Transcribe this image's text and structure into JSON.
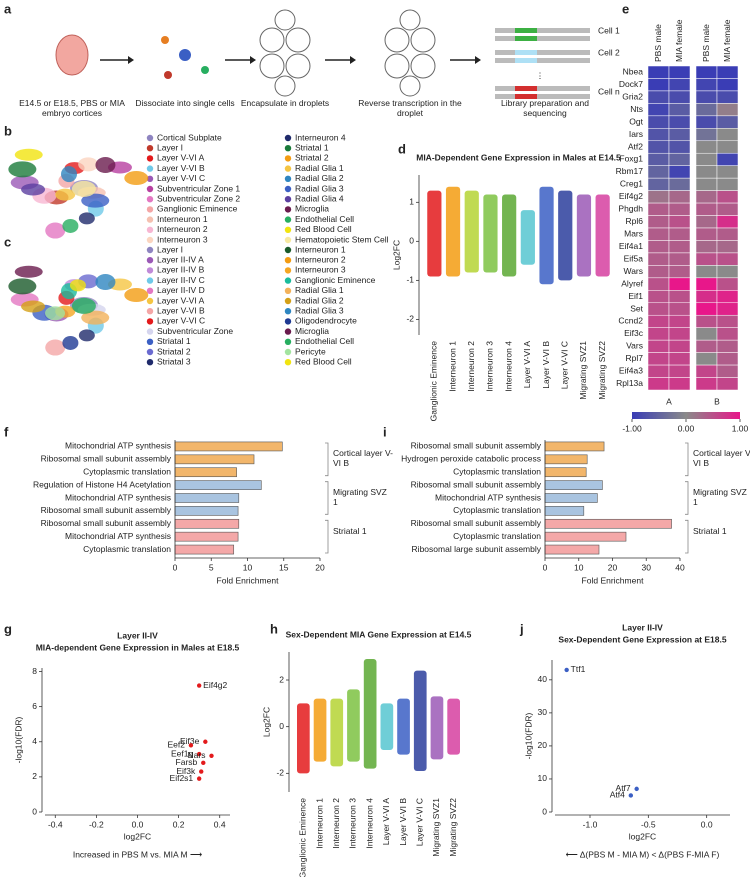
{
  "panel_labels": [
    "a",
    "b",
    "c",
    "d",
    "e",
    "f",
    "g",
    "h",
    "i",
    "j"
  ],
  "workflow": {
    "steps": [
      "E14.5 or E18.5, PBS or MIA embryo cortices",
      "Dissociate into single cells",
      "Encapsulate in droplets",
      "Reverse transcription in the droplet",
      "Library preparation and sequencing"
    ],
    "cells": [
      "Cell 1",
      "Cell 2",
      "Cell n"
    ]
  },
  "legend_b": {
    "columns": [
      [
        {
          "name": "Cortical Subplate",
          "color": "#8e84c0"
        },
        {
          "name": "Layer I",
          "color": "#c0392b"
        },
        {
          "name": "Layer V-VI A",
          "color": "#e31a1c"
        },
        {
          "name": "Layer V-VI B",
          "color": "#6fc9e8"
        },
        {
          "name": "Layer V-VI C",
          "color": "#9b59b6"
        },
        {
          "name": "Subventricular Zone 1",
          "color": "#b83fa0"
        },
        {
          "name": "Subventricular Zone 2",
          "color": "#e377c2"
        },
        {
          "name": "Ganglionic Eminence",
          "color": "#f4a6a6"
        },
        {
          "name": "Interneuron 1",
          "color": "#f5c0b0"
        },
        {
          "name": "Interneuron 2",
          "color": "#f7b6d2"
        },
        {
          "name": "Interneuron 3",
          "color": "#fbd5c0"
        }
      ],
      [
        {
          "name": "Interneuron 4",
          "color": "#1f2a6b"
        },
        {
          "name": "Striatal 1",
          "color": "#1a7a3a"
        },
        {
          "name": "Striatal 2",
          "color": "#f39c12"
        },
        {
          "name": "Radial Glia 1",
          "color": "#f5c542"
        },
        {
          "name": "Radial Glia 2",
          "color": "#2e86c1"
        },
        {
          "name": "Radial Glia 3",
          "color": "#3b5fc4"
        },
        {
          "name": "Radial Glia 4",
          "color": "#5b3fa0"
        },
        {
          "name": "Microglia",
          "color": "#6a1b4d"
        },
        {
          "name": "Endothelial Cell",
          "color": "#27ae60"
        },
        {
          "name": "Red Blood Cell",
          "color": "#f1e40f"
        },
        {
          "name": "Hematopoietic Stem Cell",
          "color": "#f7e9a0"
        }
      ]
    ]
  },
  "legend_c": {
    "columns": [
      [
        {
          "name": "Layer I",
          "color": "#8e84c0"
        },
        {
          "name": "Layer II-IV A",
          "color": "#9b59b6"
        },
        {
          "name": "Layer II-IV B",
          "color": "#c08ad8"
        },
        {
          "name": "Layer II-IV C",
          "color": "#6fc9e8"
        },
        {
          "name": "Layer II-IV D",
          "color": "#e377c2"
        },
        {
          "name": "Layer V-VI A",
          "color": "#f5c542"
        },
        {
          "name": "Layer V-VI B",
          "color": "#f4a6a6"
        },
        {
          "name": "Layer V-VI C",
          "color": "#e31a1c"
        },
        {
          "name": "Subventricular Zone",
          "color": "#d5d5ee"
        },
        {
          "name": "Striatal 1",
          "color": "#3b5fc4"
        },
        {
          "name": "Striatal 2",
          "color": "#6a6ad0"
        },
        {
          "name": "Striatal 3",
          "color": "#1f2a6b"
        }
      ],
      [
        {
          "name": "Interneuron 1",
          "color": "#1a5a2a"
        },
        {
          "name": "Interneuron 2",
          "color": "#f39c12"
        },
        {
          "name": "Interneuron 3",
          "color": "#f5a623"
        },
        {
          "name": "Ganglionic Eminence",
          "color": "#1abc9c"
        },
        {
          "name": "Radial Glia 1",
          "color": "#f3b25a"
        },
        {
          "name": "Radial Glia 2",
          "color": "#d4a017"
        },
        {
          "name": "Radial Glia 3",
          "color": "#2e86c1"
        },
        {
          "name": "Oligodendrocyte",
          "color": "#1f3a93"
        },
        {
          "name": "Microglia",
          "color": "#6a1b4d"
        },
        {
          "name": "Endothelial Cell",
          "color": "#27ae60"
        },
        {
          "name": "Pericyte",
          "color": "#a3e4a0"
        },
        {
          "name": "Red Blood Cell",
          "color": "#f1e40f"
        }
      ]
    ]
  },
  "chart_data": [
    {
      "type": "strip",
      "title": "MIA-Dependent Gene Expression in Males at E14.5",
      "ylabel": "Log2FC",
      "categories": [
        "Ganglionic Eminence",
        "Interneuron 1",
        "Interneuron 2",
        "Interneuron 3",
        "Interneuron 4",
        "Layer V-VI A",
        "Layer V-VI B",
        "Layer V-VI C",
        "Migrating SVZ1",
        "Migrating SVZ2"
      ],
      "colors": [
        "#e31a1c",
        "#f39c12",
        "#b5d334",
        "#7cc242",
        "#5aa832",
        "#56c5d0",
        "#3b5fc4",
        "#2c3e9c",
        "#9b59b6",
        "#d63fa0"
      ],
      "low": [
        -0.9,
        -0.9,
        -0.8,
        -0.8,
        -0.9,
        -0.6,
        -1.1,
        -1.0,
        -0.9,
        -0.9
      ],
      "high": [
        1.3,
        1.4,
        1.3,
        1.2,
        1.2,
        0.8,
        1.4,
        1.3,
        1.2,
        1.2
      ],
      "ylim": [
        -2.4,
        1.7
      ],
      "yticks": [
        -2,
        -1,
        0,
        1
      ]
    },
    {
      "type": "heatmap",
      "column_groups": [
        "A",
        "B"
      ],
      "columns": [
        "PBS male",
        "MIA female",
        "PBS male",
        "MIA female"
      ],
      "rows": [
        "Nbea",
        "Dock7",
        "Gria2",
        "Nts",
        "Ogt",
        "Iars",
        "Atf2",
        "Foxg1",
        "Rbm17",
        "Creg1",
        "Eif4g2",
        "Phgdh",
        "Rpl6",
        "Mars",
        "Eif4a1",
        "Eif5a",
        "Wars",
        "Alyref",
        "Eif1",
        "Set",
        "Ccnd2",
        "Eif3c",
        "Vars",
        "Rpl7",
        "Eif4a3",
        "Rpl13a"
      ],
      "values": [
        [
          -1,
          -1,
          -1,
          -1
        ],
        [
          -1,
          -0.9,
          -0.9,
          -1
        ],
        [
          -0.8,
          -0.8,
          -0.8,
          -0.8
        ],
        [
          -0.9,
          -0.6,
          -0.4,
          0.1
        ],
        [
          -0.8,
          -0.8,
          -0.8,
          -0.6
        ],
        [
          -0.7,
          -0.6,
          -0.3,
          0
        ],
        [
          -0.7,
          -0.7,
          0,
          0
        ],
        [
          -0.6,
          -0.5,
          0,
          -0.9
        ],
        [
          -0.5,
          -0.9,
          0,
          0
        ],
        [
          -0.5,
          -0.4,
          0,
          0
        ],
        [
          0.2,
          0.3,
          0.3,
          0.5
        ],
        [
          0.4,
          0.4,
          0.4,
          0.4
        ],
        [
          0.4,
          0.5,
          0.3,
          0.8
        ],
        [
          0.4,
          0.4,
          0.4,
          0.4
        ],
        [
          0.4,
          0.4,
          0.3,
          0.3
        ],
        [
          0.4,
          0.4,
          0.5,
          0.5
        ],
        [
          0.4,
          0.4,
          0,
          0
        ],
        [
          0.5,
          1,
          1,
          0.5
        ],
        [
          0.5,
          0.5,
          0.8,
          0.9
        ],
        [
          0.5,
          0.5,
          1,
          0.9
        ],
        [
          0.6,
          0.6,
          0.5,
          0.5
        ],
        [
          0.6,
          0.6,
          0,
          0.5
        ],
        [
          0.6,
          0.6,
          0.4,
          0.4
        ],
        [
          0.6,
          0.6,
          0,
          0.4
        ],
        [
          0.6,
          0.6,
          0.6,
          0.4
        ],
        [
          0.7,
          0.7,
          0.7,
          0.6
        ]
      ],
      "colorscale": {
        "colors": [
          "#3a3db5",
          "#8a8a8a",
          "#e8178a"
        ],
        "range": [
          -1,
          1
        ],
        "ticks": [
          {
            "value": -1,
            "label": "-1.00"
          },
          {
            "value": 0,
            "label": "0.00"
          },
          {
            "value": 1,
            "label": "1.00"
          }
        ]
      }
    },
    {
      "type": "barh",
      "xlabel": "Fold Enrichment",
      "xlim": [
        0,
        20
      ],
      "xticks": [
        0,
        5,
        10,
        15,
        20
      ],
      "groups": [
        {
          "label": "Cortical layer V-VI B",
          "color": "#f2b66b",
          "categories": [
            "Mitochondrial ATP synthesis",
            "Ribosomal small subunit assembly",
            "Cytoplasmic translation"
          ],
          "values": [
            14.8,
            10.9,
            8.5
          ]
        },
        {
          "label": "Migrating SVZ 1",
          "color": "#a9c4e0",
          "categories": [
            "Regulation of Histone H4 Acetylation",
            "Mitochondrial ATP synthesis",
            "Ribosomal small subunit assembly"
          ],
          "values": [
            11.9,
            8.8,
            8.7
          ]
        },
        {
          "label": "Striatal 1",
          "color": "#f4a8a8",
          "categories": [
            "Ribosomal small subunit assembly",
            "Mitochondrial ATP synthesis",
            "Cytoplasmic translation"
          ],
          "values": [
            8.8,
            8.7,
            8.1
          ]
        }
      ]
    },
    {
      "type": "barh",
      "xlabel": "Fold Enrichment",
      "xlim": [
        0,
        40
      ],
      "xticks": [
        0,
        10,
        20,
        30,
        40
      ],
      "groups": [
        {
          "label": "Cortical layer V-VI B",
          "color": "#f2b66b",
          "categories": [
            "Ribosomal small subunit assembly",
            "Hydrogen peroxide catabolic process",
            "Cytoplasmic translation"
          ],
          "values": [
            17.5,
            12.5,
            12.2
          ]
        },
        {
          "label": "Migrating SVZ 1",
          "color": "#a9c4e0",
          "categories": [
            "Ribosomal small subunit assembly",
            "Mitochondrial ATP synthesis",
            "Cytoplasmic translation"
          ],
          "values": [
            17,
            15.5,
            11.5
          ]
        },
        {
          "label": "Striatal 1",
          "color": "#f4a8a8",
          "categories": [
            "Ribosomal small subunit assembly",
            "Cytoplasmic translation",
            "Ribosomal large subunit assembly"
          ],
          "values": [
            37.5,
            24,
            16
          ]
        }
      ]
    },
    {
      "type": "volcano",
      "title": "Layer II-IV",
      "subtitle": "MIA-dependent Gene Expression in Males at E18.5",
      "xlabel": "log2FC",
      "ylabel": "-log10(FDR)",
      "caption": "Increased in PBS M vs. MIA M ⟶",
      "color": "#e31a1c",
      "xlim": [
        -0.45,
        0.45
      ],
      "ylim": [
        0,
        8.2
      ],
      "xticks": [
        -0.4,
        -0.2,
        {
          "value": 0,
          "label": "0.0"
        },
        0.2,
        0.4
      ],
      "yticks": [
        0,
        2,
        4,
        6,
        8
      ],
      "points": [
        {
          "label": "Eif4g2",
          "x": 0.3,
          "y": 7.2
        },
        {
          "label": "Eif3e",
          "x": 0.33,
          "y": 4.0
        },
        {
          "label": "Eef2",
          "x": 0.26,
          "y": 3.8
        },
        {
          "label": "Eef1g",
          "x": 0.3,
          "y": 3.3
        },
        {
          "label": "Nars",
          "x": 0.36,
          "y": 3.2
        },
        {
          "label": "Farsb",
          "x": 0.32,
          "y": 2.8
        },
        {
          "label": "Eif3k",
          "x": 0.31,
          "y": 2.3
        },
        {
          "label": "Eif2s1",
          "x": 0.3,
          "y": 1.9
        }
      ]
    },
    {
      "type": "strip",
      "title": "Sex-Dependent MIA Gene Expression at E14.5",
      "ylabel": "Log2FC",
      "categories": [
        "Ganglionic Eminence",
        "Interneuron 1",
        "Interneuron 2",
        "Interneuron 3",
        "Interneuron 4",
        "Layer V-VI A",
        "Layer V-VI B",
        "Layer V-VI C",
        "Migrating SVZ1",
        "Migrating SVZ2"
      ],
      "colors": [
        "#e31a1c",
        "#f39c12",
        "#b5d334",
        "#7cc242",
        "#5aa832",
        "#56c5d0",
        "#3b5fc4",
        "#2c3e9c",
        "#9b59b6",
        "#d63fa0"
      ],
      "low": [
        -2.0,
        -1.5,
        -1.7,
        -1.5,
        -1.8,
        -1.0,
        -1.2,
        -1.9,
        -1.4,
        -1.2
      ],
      "high": [
        1.0,
        1.2,
        1.2,
        1.6,
        2.9,
        1.0,
        1.2,
        2.4,
        1.3,
        1.2
      ],
      "ylim": [
        -2.8,
        3.2
      ],
      "yticks": [
        -2,
        0,
        2
      ]
    },
    {
      "type": "volcano",
      "title": "Layer II-IV",
      "subtitle": "Sex-Dependent Gene Expression at E18.5",
      "xlabel": "log2FC",
      "ylabel": "-log10(FDR)",
      "caption": "⟵ Δ(PBS M - MIA M) < Δ(PBS F-MIA F)",
      "color": "#3b5fc4",
      "xlim": [
        -1.3,
        0.2
      ],
      "ylim": [
        0,
        46
      ],
      "xticks": [
        {
          "value": -1,
          "label": "-1.0"
        },
        -0.5,
        {
          "value": 0,
          "label": "0.0"
        }
      ],
      "yticks": [
        0,
        10,
        20,
        30,
        40
      ],
      "points": [
        {
          "label": "Ttf1",
          "x": -1.2,
          "y": 43
        },
        {
          "label": "Atf7",
          "x": -0.6,
          "y": 7
        },
        {
          "label": "Atf4",
          "x": -0.65,
          "y": 5
        }
      ]
    }
  ]
}
